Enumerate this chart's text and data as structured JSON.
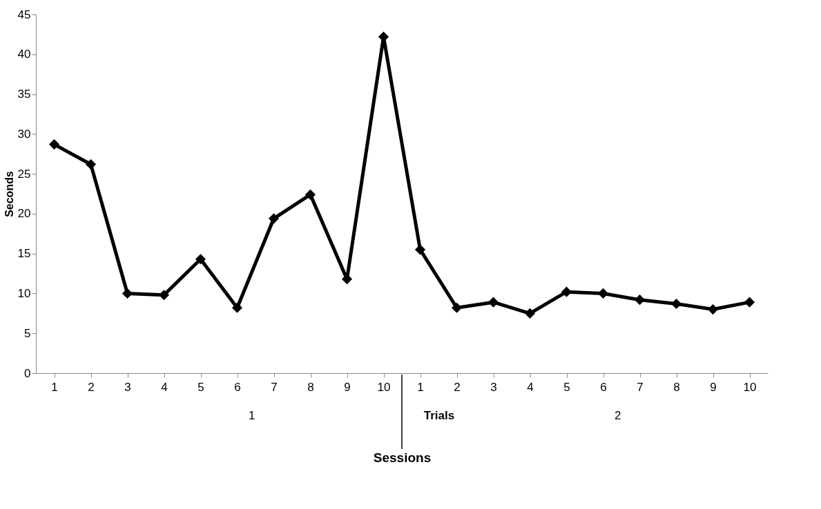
{
  "chart_data": {
    "type": "line",
    "xlabel": "Sessions",
    "ylabel": "Seconds",
    "categories": [
      "1",
      "2",
      "3",
      "4",
      "5",
      "6",
      "7",
      "8",
      "9",
      "10",
      "1",
      "2",
      "3",
      "4",
      "5",
      "6",
      "7",
      "8",
      "9",
      "10"
    ],
    "series": [
      {
        "color": "#000000",
        "values": [
          28.7,
          26.2,
          10.0,
          9.8,
          14.3,
          8.2,
          19.4,
          22.4,
          11.8,
          42.2,
          15.5,
          8.2,
          8.9,
          7.5,
          10.2,
          10.0,
          9.2,
          8.7,
          8.0,
          8.9
        ]
      }
    ],
    "ylim": [
      0,
      45
    ],
    "yticks": [
      0,
      5,
      10,
      15,
      20,
      25,
      30,
      35,
      40,
      45
    ],
    "annotations": [
      "1",
      "Trials",
      "2"
    ],
    "marker": "diamond",
    "line_style": "solid",
    "grid": false
  }
}
